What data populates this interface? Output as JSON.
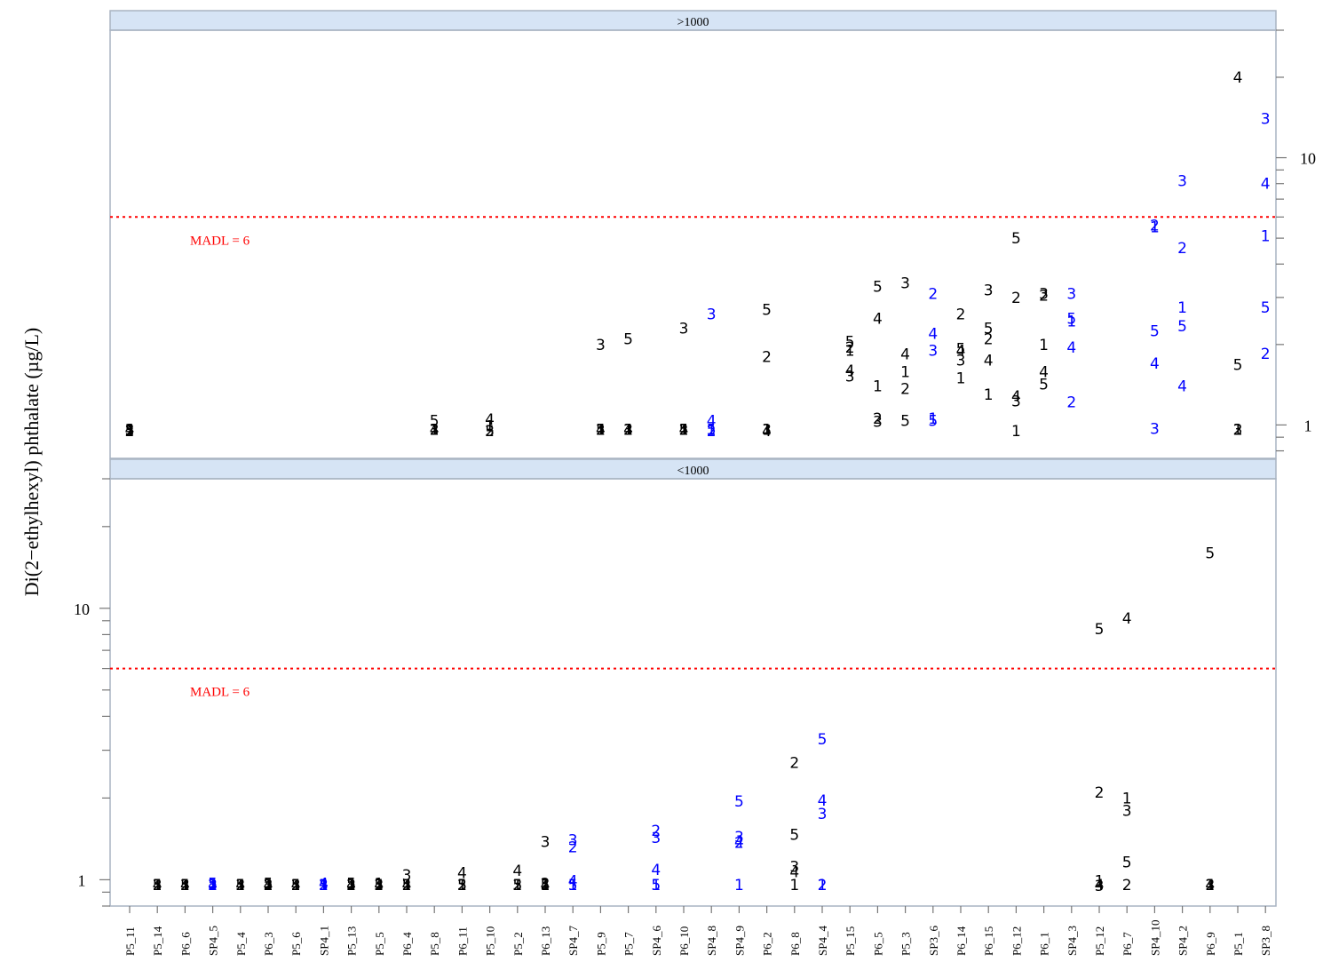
{
  "chart_data": {
    "type": "scatter",
    "ylabel": "Di(2−ethylhexyl) phthalate (µg/L)",
    "y_scale": "log",
    "categories": [
      "P5_11",
      "P5_14",
      "P6_6",
      "SP4_5",
      "P5_4",
      "P6_3",
      "P5_6",
      "SP4_1",
      "P5_13",
      "P5_5",
      "P6_4",
      "P5_8",
      "P6_11",
      "P5_10",
      "P5_2",
      "P6_13",
      "SP4_7",
      "P5_9",
      "P5_7",
      "SP4_6",
      "P6_10",
      "SP4_8",
      "SP4_9",
      "P6_2",
      "P6_8",
      "SP4_4",
      "P5_15",
      "P6_5",
      "P5_3",
      "SP3_6",
      "P6_14",
      "P6_15",
      "P6_12",
      "P6_1",
      "SP4_3",
      "P5_12",
      "P6_7",
      "SP4_10",
      "SP4_2",
      "P6_9",
      "P5_1",
      "SP3_8"
    ],
    "colors": {
      "P": "#000000",
      "SP": "#0000ff",
      "madl": "#ff0000",
      "strip": "#d6e4f5"
    },
    "panels": [
      {
        "strip": ">1000",
        "ylim": [
          0.75,
          30
        ],
        "yticks": [
          1,
          10
        ],
        "tick_labels": [
          "1",
          "10"
        ],
        "tick_side": "right",
        "madl": 6,
        "madl_label": "MADL = 6",
        "points": [
          [
            "P5_11",
            "1",
            0.96
          ],
          [
            "P5_11",
            "2",
            0.95
          ],
          [
            "P5_11",
            "3",
            0.96
          ],
          [
            "P5_11",
            "4",
            0.96
          ],
          [
            "P5_11",
            "5",
            0.95
          ],
          [
            "P5_8",
            "1",
            0.96
          ],
          [
            "P5_8",
            "2",
            0.96
          ],
          [
            "P5_8",
            "3",
            0.96
          ],
          [
            "P5_8",
            "4",
            0.96
          ],
          [
            "P5_8",
            "5",
            1.04
          ],
          [
            "P5_10",
            "1",
            0.99
          ],
          [
            "P5_10",
            "2",
            0.95
          ],
          [
            "P5_10",
            "3",
            0.95
          ],
          [
            "P5_10",
            "4",
            1.05
          ],
          [
            "P5_10",
            "5",
            0.95
          ],
          [
            "P5_9",
            "1",
            0.96
          ],
          [
            "P5_9",
            "2",
            0.96
          ],
          [
            "P5_9",
            "3",
            2.0
          ],
          [
            "P5_9",
            "4",
            0.96
          ],
          [
            "P5_9",
            "5",
            0.96
          ],
          [
            "P5_7",
            "1",
            0.96
          ],
          [
            "P5_7",
            "2",
            0.96
          ],
          [
            "P5_7",
            "3",
            0.96
          ],
          [
            "P5_7",
            "4",
            0.96
          ],
          [
            "P5_7",
            "5",
            2.1
          ],
          [
            "P6_10",
            "1",
            0.96
          ],
          [
            "P6_10",
            "2",
            0.96
          ],
          [
            "P6_10",
            "3",
            2.3
          ],
          [
            "P6_10",
            "4",
            0.96
          ],
          [
            "P6_10",
            "5",
            0.96
          ],
          [
            "SP4_8",
            "1",
            0.96
          ],
          [
            "SP4_8",
            "2",
            0.95
          ],
          [
            "SP4_8",
            "3",
            2.6
          ],
          [
            "SP4_8",
            "4",
            1.04
          ],
          [
            "SP4_8",
            "5",
            0.96
          ],
          [
            "P6_2",
            "1",
            0.96
          ],
          [
            "P6_2",
            "2",
            1.8
          ],
          [
            "P6_2",
            "3",
            0.96
          ],
          [
            "P6_2",
            "4",
            0.95
          ],
          [
            "P6_2",
            "5",
            2.7
          ],
          [
            "P5_15",
            "1",
            1.9
          ],
          [
            "P5_15",
            "2",
            1.95
          ],
          [
            "P5_15",
            "3",
            1.52
          ],
          [
            "P5_15",
            "4",
            1.6
          ],
          [
            "P5_15",
            "5",
            2.05
          ],
          [
            "P6_5",
            "1",
            1.4
          ],
          [
            "P6_5",
            "2",
            1.06
          ],
          [
            "P6_5",
            "3",
            1.03
          ],
          [
            "P6_5",
            "4",
            2.5
          ],
          [
            "P6_5",
            "5",
            3.3
          ],
          [
            "P5_3",
            "1",
            1.58
          ],
          [
            "P5_3",
            "2",
            1.37
          ],
          [
            "P5_3",
            "3",
            3.4
          ],
          [
            "P5_3",
            "4",
            1.84
          ],
          [
            "P5_3",
            "5",
            1.04
          ],
          [
            "SP3_6",
            "1",
            1.06
          ],
          [
            "SP3_6",
            "2",
            3.1
          ],
          [
            "SP3_6",
            "3",
            1.9
          ],
          [
            "SP3_6",
            "4",
            2.2
          ],
          [
            "SP3_6",
            "5",
            1.04
          ],
          [
            "P6_14",
            "1",
            1.5
          ],
          [
            "P6_14",
            "2",
            2.6
          ],
          [
            "P6_14",
            "3",
            1.75
          ],
          [
            "P6_14",
            "4",
            1.9
          ],
          [
            "P6_14",
            "5",
            1.93
          ],
          [
            "P6_15",
            "1",
            1.3
          ],
          [
            "P6_15",
            "2",
            2.1
          ],
          [
            "P6_15",
            "3",
            3.2
          ],
          [
            "P6_15",
            "4",
            1.75
          ],
          [
            "P6_15",
            "5",
            2.3
          ],
          [
            "P6_12",
            "1",
            0.95
          ],
          [
            "P6_12",
            "2",
            3.0
          ],
          [
            "P6_12",
            "3",
            1.23
          ],
          [
            "P6_12",
            "4",
            1.28
          ],
          [
            "P6_12",
            "5",
            5.0
          ],
          [
            "P6_1",
            "1",
            2.0
          ],
          [
            "P6_1",
            "2",
            3.05
          ],
          [
            "P6_1",
            "3",
            3.1
          ],
          [
            "P6_1",
            "4",
            1.58
          ],
          [
            "P6_1",
            "5",
            1.42
          ],
          [
            "SP4_3",
            "1",
            2.45
          ],
          [
            "SP4_3",
            "2",
            1.22
          ],
          [
            "SP4_3",
            "3",
            3.1
          ],
          [
            "SP4_3",
            "4",
            1.95
          ],
          [
            "SP4_3",
            "5",
            2.5
          ],
          [
            "SP4_10",
            "1",
            5.5
          ],
          [
            "SP4_10",
            "2",
            5.6
          ],
          [
            "SP4_10",
            "3",
            0.97
          ],
          [
            "SP4_10",
            "4",
            1.7
          ],
          [
            "SP4_10",
            "5",
            2.25
          ],
          [
            "SP4_2",
            "1",
            2.75
          ],
          [
            "SP4_2",
            "2",
            4.6
          ],
          [
            "SP4_2",
            "3",
            8.2
          ],
          [
            "SP4_2",
            "4",
            1.4
          ],
          [
            "SP4_2",
            "5",
            2.35
          ],
          [
            "P5_1",
            "1",
            0.96
          ],
          [
            "P5_1",
            "2",
            0.96
          ],
          [
            "P5_1",
            "3",
            0.96
          ],
          [
            "P5_1",
            "4",
            20.0
          ],
          [
            "P5_1",
            "5",
            1.68
          ],
          [
            "SP3_8",
            "1",
            5.1
          ],
          [
            "SP3_8",
            "2",
            1.85
          ],
          [
            "SP3_8",
            "3",
            14.0
          ],
          [
            "SP3_8",
            "4",
            8.0
          ],
          [
            "SP3_8",
            "5",
            2.75
          ]
        ]
      },
      {
        "strip": "<1000",
        "ylim": [
          0.8,
          30
        ],
        "yticks": [
          1,
          10
        ],
        "tick_labels": [
          "1",
          "10"
        ],
        "tick_side": "left",
        "madl": 6,
        "madl_label": "MADL = 6",
        "points": [
          [
            "P5_14",
            "1",
            0.96
          ],
          [
            "P5_14",
            "2",
            0.96
          ],
          [
            "P5_14",
            "3",
            0.96
          ],
          [
            "P5_14",
            "4",
            0.96
          ],
          [
            "P5_14",
            "5",
            0.96
          ],
          [
            "P6_6",
            "1",
            0.96
          ],
          [
            "P6_6",
            "2",
            0.96
          ],
          [
            "P6_6",
            "3",
            0.96
          ],
          [
            "P6_6",
            "4",
            0.96
          ],
          [
            "P6_6",
            "5",
            0.96
          ],
          [
            "SP4_5",
            "1",
            0.96
          ],
          [
            "SP4_5",
            "2",
            0.96
          ],
          [
            "SP4_5",
            "3",
            0.96
          ],
          [
            "SP4_5",
            "4",
            0.96
          ],
          [
            "SP4_5",
            "5",
            0.97
          ],
          [
            "P5_4",
            "1",
            0.96
          ],
          [
            "P5_4",
            "2",
            0.96
          ],
          [
            "P5_4",
            "3",
            0.96
          ],
          [
            "P5_4",
            "4",
            0.96
          ],
          [
            "P5_4",
            "5",
            0.96
          ],
          [
            "P6_3",
            "1",
            0.96
          ],
          [
            "P6_3",
            "2",
            0.96
          ],
          [
            "P6_3",
            "3",
            0.96
          ],
          [
            "P6_3",
            "4",
            0.96
          ],
          [
            "P6_3",
            "5",
            0.97
          ],
          [
            "P5_6",
            "1",
            0.96
          ],
          [
            "P5_6",
            "2",
            0.96
          ],
          [
            "P5_6",
            "3",
            0.96
          ],
          [
            "P5_6",
            "4",
            0.96
          ],
          [
            "P5_6",
            "5",
            0.96
          ],
          [
            "SP4_1",
            "1",
            0.96
          ],
          [
            "SP4_1",
            "2",
            0.96
          ],
          [
            "SP4_1",
            "3",
            0.96
          ],
          [
            "SP4_1",
            "4",
            0.97
          ],
          [
            "SP4_1",
            "5",
            0.96
          ],
          [
            "P5_13",
            "1",
            0.96
          ],
          [
            "P5_13",
            "2",
            0.96
          ],
          [
            "P5_13",
            "3",
            0.96
          ],
          [
            "P5_13",
            "4",
            0.96
          ],
          [
            "P5_13",
            "5",
            0.97
          ],
          [
            "P5_5",
            "1",
            0.97
          ],
          [
            "P5_5",
            "2",
            0.96
          ],
          [
            "P5_5",
            "3",
            0.96
          ],
          [
            "P5_5",
            "4",
            0.96
          ],
          [
            "P5_5",
            "5",
            0.96
          ],
          [
            "P6_4",
            "1",
            0.96
          ],
          [
            "P6_4",
            "2",
            0.96
          ],
          [
            "P6_4",
            "3",
            1.04
          ],
          [
            "P6_4",
            "4",
            0.96
          ],
          [
            "P6_4",
            "5",
            0.96
          ],
          [
            "P6_11",
            "1",
            0.96
          ],
          [
            "P6_11",
            "2",
            0.96
          ],
          [
            "P6_11",
            "3",
            0.96
          ],
          [
            "P6_11",
            "4",
            1.06
          ],
          [
            "P6_11",
            "5",
            0.96
          ],
          [
            "P5_2",
            "1",
            0.96
          ],
          [
            "P5_2",
            "2",
            0.96
          ],
          [
            "P5_2",
            "3",
            0.96
          ],
          [
            "P5_2",
            "4",
            1.08
          ],
          [
            "P5_2",
            "5",
            0.96
          ],
          [
            "P6_13",
            "1",
            0.96
          ],
          [
            "P6_13",
            "2",
            0.97
          ],
          [
            "P6_13",
            "3",
            1.38
          ],
          [
            "P6_13",
            "4",
            0.96
          ],
          [
            "P6_13",
            "5",
            0.96
          ],
          [
            "SP4_7",
            "1",
            0.96
          ],
          [
            "SP4_7",
            "2",
            1.32
          ],
          [
            "SP4_7",
            "3",
            1.4
          ],
          [
            "SP4_7",
            "4",
            0.99
          ],
          [
            "SP4_7",
            "5",
            0.96
          ],
          [
            "SP4_6",
            "1",
            0.96
          ],
          [
            "SP4_6",
            "2",
            1.52
          ],
          [
            "SP4_6",
            "3",
            1.43
          ],
          [
            "SP4_6",
            "4",
            1.09
          ],
          [
            "SP4_6",
            "5",
            0.96
          ],
          [
            "SP4_9",
            "1",
            0.96
          ],
          [
            "SP4_9",
            "2",
            1.37
          ],
          [
            "SP4_9",
            "3",
            1.44
          ],
          [
            "SP4_9",
            "4",
            1.38
          ],
          [
            "SP4_9",
            "5",
            1.95
          ],
          [
            "P6_8",
            "1",
            0.96
          ],
          [
            "P6_8",
            "2",
            2.7
          ],
          [
            "P6_8",
            "3",
            1.12
          ],
          [
            "P6_8",
            "4",
            1.07
          ],
          [
            "P6_8",
            "5",
            1.47
          ],
          [
            "SP4_4",
            "1",
            0.96
          ],
          [
            "SP4_4",
            "2",
            0.96
          ],
          [
            "SP4_4",
            "3",
            1.75
          ],
          [
            "SP4_4",
            "4",
            1.96
          ],
          [
            "SP4_4",
            "5",
            3.3
          ],
          [
            "P5_12",
            "1",
            0.99
          ],
          [
            "P5_12",
            "2",
            2.1
          ],
          [
            "P5_12",
            "3",
            0.95
          ],
          [
            "P5_12",
            "4",
            0.96
          ],
          [
            "P5_12",
            "5",
            8.4
          ],
          [
            "P6_7",
            "1",
            2.0
          ],
          [
            "P6_7",
            "2",
            0.96
          ],
          [
            "P6_7",
            "3",
            1.8
          ],
          [
            "P6_7",
            "4",
            9.2
          ],
          [
            "P6_7",
            "5",
            1.16
          ],
          [
            "P6_9",
            "1",
            0.96
          ],
          [
            "P6_9",
            "2",
            0.96
          ],
          [
            "P6_9",
            "3",
            0.96
          ],
          [
            "P6_9",
            "4",
            0.96
          ],
          [
            "P6_9",
            "5",
            16.0
          ]
        ]
      }
    ]
  }
}
